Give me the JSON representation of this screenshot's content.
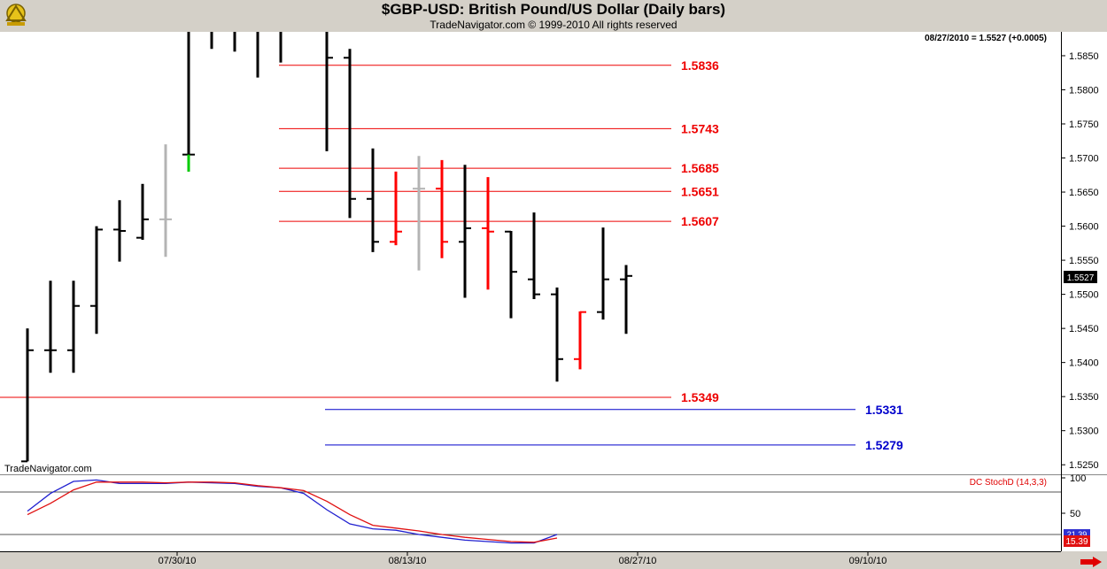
{
  "header": {
    "title": "$GBP-USD:  British Pound/US Dollar  (Daily bars)",
    "copyright": "TradeNavigator.com © 1999-2010 All rights reserved"
  },
  "price_panel": {
    "last_quote": "08/27/2010 = 1.5527 (+0.0005)",
    "watermark": "TradeNavigator.com",
    "last_price_label": "1.5527"
  },
  "stoch_panel": {
    "name": "DC StochD (14,3,3)",
    "value_badge_top": "21.39",
    "value_badge": "15.39"
  },
  "colors": {
    "bar_black": "#000000",
    "bar_red": "#ff0000",
    "bar_gray": "#b4b4b4",
    "bar_green": "#00cc00",
    "red_level": "#ee0000",
    "blue_level": "#0000cc",
    "k_line": "#2020d0",
    "d_line": "#e01010"
  },
  "chart_data": [
    {
      "type": "ohlc",
      "title": "$GBP-USD:  British Pound/US Dollar  (Daily bars)",
      "y_ticks": [
        "1.5850",
        "1.5800",
        "1.5750",
        "1.5700",
        "1.5650",
        "1.5600",
        "1.5550",
        "1.5500",
        "1.5450",
        "1.5400",
        "1.5350",
        "1.5300",
        "1.5250"
      ],
      "ylim": [
        1.5236,
        1.5885
      ],
      "x_tick_labels": [
        "07/30/10",
        "08/13/10",
        "08/27/10",
        "09/10/10"
      ],
      "x_tick_bar_index": [
        6,
        16,
        26,
        36
      ],
      "bars": [
        {
          "o": 1.5255,
          "h": 1.545,
          "l": 1.5255,
          "c": 1.5418,
          "color": "black"
        },
        {
          "o": 1.5418,
          "h": 1.552,
          "l": 1.5385,
          "c": 1.5418,
          "color": "black"
        },
        {
          "o": 1.5418,
          "h": 1.552,
          "l": 1.5385,
          "c": 1.5483,
          "color": "black"
        },
        {
          "o": 1.5483,
          "h": 1.56,
          "l": 1.5442,
          "c": 1.5595,
          "color": "black"
        },
        {
          "o": 1.5595,
          "h": 1.5638,
          "l": 1.5548,
          "c": 1.5593,
          "color": "black"
        },
        {
          "o": 1.5583,
          "h": 1.5662,
          "l": 1.558,
          "c": 1.561,
          "color": "black"
        },
        {
          "o": 1.561,
          "h": 1.572,
          "l": 1.5555,
          "c": 1.561,
          "color": "gray"
        },
        {
          "o": 1.5705,
          "h": 1.589,
          "l": 1.568,
          "c": 1.5705,
          "color": "black",
          "tail": "green"
        },
        {
          "o": 1.589,
          "h": 1.589,
          "l": 1.586,
          "c": 1.589,
          "color": "black"
        },
        {
          "o": 1.589,
          "h": 1.589,
          "l": 1.5856,
          "c": 1.589,
          "color": "black"
        },
        {
          "o": 1.589,
          "h": 1.589,
          "l": 1.5818,
          "c": 1.589,
          "color": "black"
        },
        {
          "o": 1.589,
          "h": 1.589,
          "l": 1.584,
          "c": 1.589,
          "color": "black"
        },
        {
          "o": 1.589,
          "h": 1.589,
          "l": 1.5888,
          "c": 1.589,
          "color": "red"
        },
        {
          "o": 1.589,
          "h": 1.589,
          "l": 1.571,
          "c": 1.5847,
          "color": "black"
        },
        {
          "o": 1.5847,
          "h": 1.586,
          "l": 1.5612,
          "c": 1.564,
          "color": "black"
        },
        {
          "o": 1.564,
          "h": 1.5714,
          "l": 1.5562,
          "c": 1.5577,
          "color": "black"
        },
        {
          "o": 1.5577,
          "h": 1.568,
          "l": 1.5572,
          "c": 1.5592,
          "color": "red"
        },
        {
          "o": 1.5655,
          "h": 1.5703,
          "l": 1.5535,
          "c": 1.5655,
          "color": "gray"
        },
        {
          "o": 1.5655,
          "h": 1.5697,
          "l": 1.5553,
          "c": 1.5577,
          "color": "red"
        },
        {
          "o": 1.5577,
          "h": 1.569,
          "l": 1.5495,
          "c": 1.5597,
          "color": "black"
        },
        {
          "o": 1.5597,
          "h": 1.5672,
          "l": 1.5507,
          "c": 1.5592,
          "color": "red"
        },
        {
          "o": 1.5592,
          "h": 1.5593,
          "l": 1.5465,
          "c": 1.5533,
          "color": "black"
        },
        {
          "o": 1.5522,
          "h": 1.562,
          "l": 1.5493,
          "c": 1.55,
          "color": "black"
        },
        {
          "o": 1.55,
          "h": 1.551,
          "l": 1.5372,
          "c": 1.5405,
          "color": "black"
        },
        {
          "o": 1.5405,
          "h": 1.5475,
          "l": 1.539,
          "c": 1.5474,
          "color": "red"
        },
        {
          "o": 1.5474,
          "h": 1.5598,
          "l": 1.5463,
          "c": 1.5522,
          "color": "black"
        },
        {
          "o": 1.5522,
          "h": 1.5543,
          "l": 1.5442,
          "c": 1.5527,
          "color": "black"
        }
      ],
      "levels": [
        {
          "value": 1.5836,
          "label": "1.5836",
          "color": "red",
          "from_bar": 11
        },
        {
          "value": 1.5743,
          "label": "1.5743",
          "color": "red",
          "from_bar": 11
        },
        {
          "value": 1.5685,
          "label": "1.5685",
          "color": "red",
          "from_bar": 11
        },
        {
          "value": 1.5651,
          "label": "1.5651",
          "color": "red",
          "from_bar": 11
        },
        {
          "value": 1.5607,
          "label": "1.5607",
          "color": "red",
          "from_bar": 11
        },
        {
          "value": 1.5349,
          "label": "1.5349",
          "color": "red",
          "from_bar": -1
        },
        {
          "value": 1.5331,
          "label": "1.5331",
          "color": "blue",
          "from_bar": 13
        },
        {
          "value": 1.5279,
          "label": "1.5279",
          "color": "blue",
          "from_bar": 13
        }
      ]
    },
    {
      "type": "line",
      "title": "DC StochD (14,3,3)",
      "y_ticks": [
        "100",
        "50"
      ],
      "ylim": [
        0,
        100
      ],
      "ref_lines": [
        80,
        20
      ],
      "series": [
        {
          "color": "k_line",
          "values": [
            53,
            78,
            95,
            97,
            92,
            92,
            92,
            94,
            93,
            92,
            88,
            86,
            78,
            55,
            35,
            28,
            26,
            20,
            16,
            12,
            10,
            8,
            8,
            20
          ]
        },
        {
          "color": "d_line",
          "values": [
            48,
            64,
            83,
            94,
            94,
            94,
            93,
            94,
            94,
            93,
            89,
            86,
            82,
            67,
            48,
            33,
            29,
            25,
            20,
            16,
            13,
            10,
            9,
            15
          ]
        }
      ]
    }
  ]
}
